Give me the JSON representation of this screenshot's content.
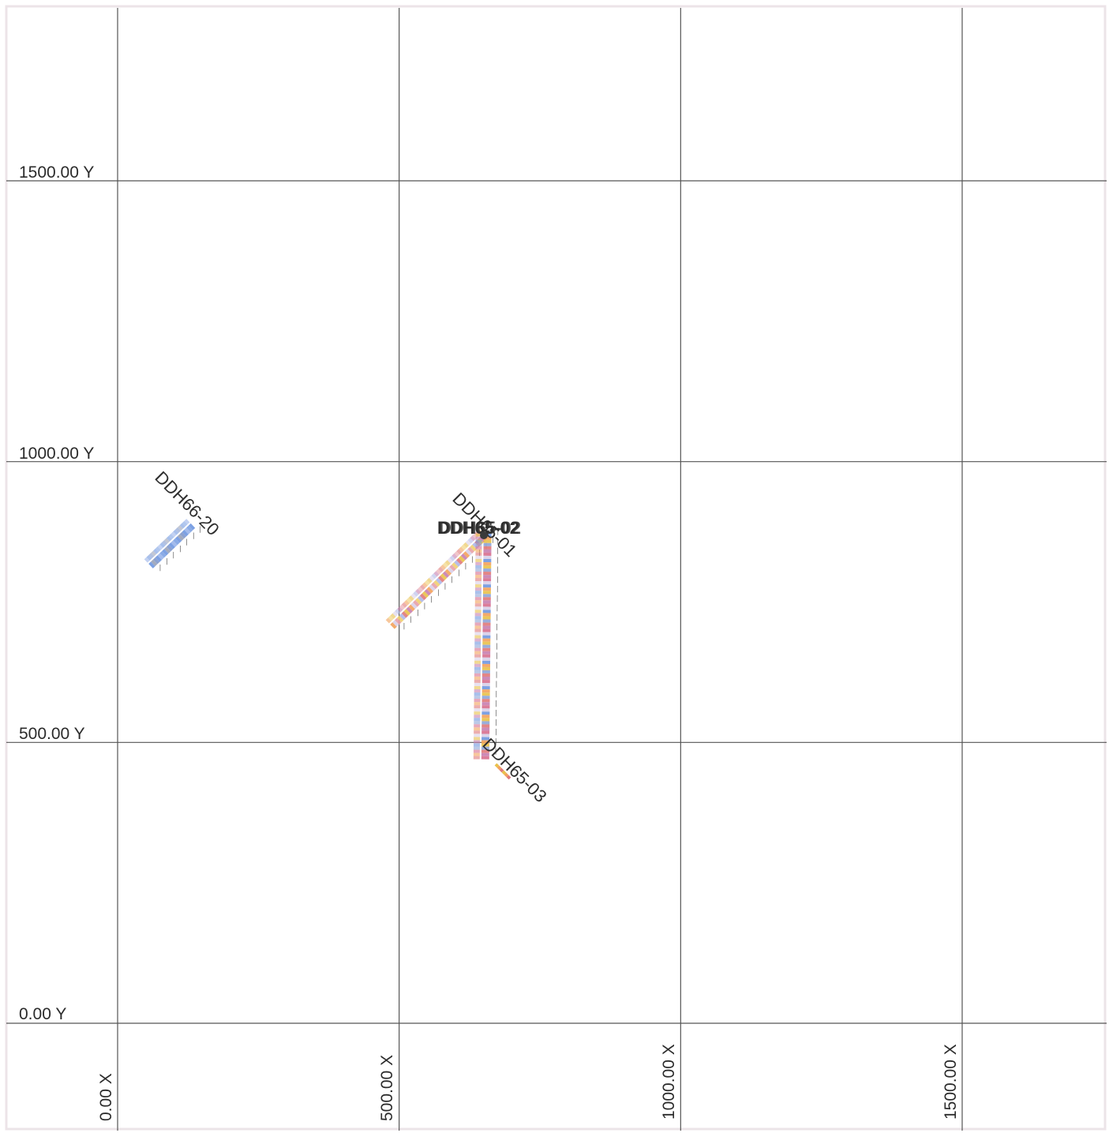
{
  "map": {
    "x_axis": {
      "labels": [
        "0.00 X",
        "500.00 X",
        "1000.00 X",
        "1500.00 X"
      ],
      "values": [
        0,
        500,
        1000,
        1500
      ]
    },
    "y_axis": {
      "labels": [
        "1500.00 Y",
        "1000.00 Y",
        "500.00 Y",
        "0.00 Y"
      ],
      "values": [
        1500,
        1000,
        500,
        0
      ]
    },
    "colors": {
      "grid": "#555555",
      "frame": "#ece4e8",
      "interval_palette": [
        "#6f97e0",
        "#a9bfee",
        "#e9c14a",
        "#e07a7a",
        "#c87fb0",
        "#f3a35c",
        "#8fa6d8",
        "#d9d0e8"
      ]
    },
    "drillholes": [
      {
        "id": "DDH66-20",
        "label": "DDH66-20",
        "collar": [
          130,
          890
        ],
        "end": [
          55,
          818
        ],
        "palette": [
          "#6f97e0",
          "#7ea2e4",
          "#9ab4ea",
          "#6f97e0",
          "#8098cc",
          "#9aa3b8"
        ]
      },
      {
        "id": "DDH65-01",
        "label": "DDH65-01",
        "collar": [
          650,
          872
        ],
        "end": [
          484,
          710
        ],
        "palette": [
          "#e07a7a",
          "#e9c14a",
          "#c87fb0",
          "#f3a35c",
          "#d9d0e8",
          "#e8a0a8",
          "#f0d070",
          "#b0b8e8"
        ]
      },
      {
        "id": "DDH65-02",
        "label": "DDH65-02",
        "collar": [
          650,
          872
        ],
        "end": [
          646,
          470
        ],
        "palette": [
          "#d87090",
          "#c87fb0",
          "#e07a7a",
          "#8fa6d8",
          "#e9c14a",
          "#f3a35c",
          "#6f97e0",
          "#d9d0e8"
        ]
      },
      {
        "id": "DDH65-03",
        "label": "DDH65-03",
        "collar": [
          650,
          872
        ],
        "end": [
          650,
          470
        ],
        "palette": [
          "#e9c14a",
          "#f3a35c",
          "#e07a7a"
        ]
      }
    ],
    "overlapping_collar_label": "DDH65-02"
  }
}
